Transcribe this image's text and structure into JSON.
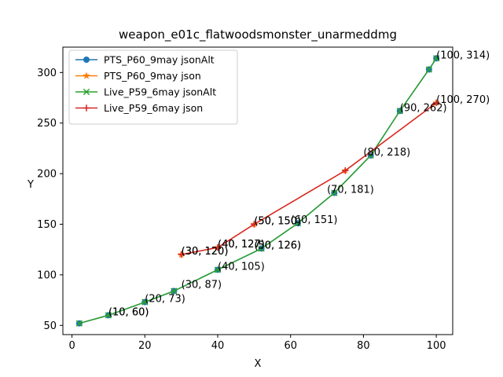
{
  "chart_data": {
    "type": "line",
    "title": "weapon_e01c_flatwoodsmonster_unarmeddmg",
    "xlabel": "X",
    "ylabel": "Y",
    "xlim": [
      -2.5,
      104.5
    ],
    "ylim": [
      40.9,
      325.1
    ],
    "xticks": [
      0,
      20,
      40,
      60,
      80,
      100
    ],
    "yticks": [
      50,
      100,
      150,
      200,
      250,
      300
    ],
    "grid": false,
    "legend_position": "upper left",
    "series": [
      {
        "name": "PTS_P60_9may jsonAlt",
        "color": "#1f77b4",
        "marker": "circle",
        "x": [
          2,
          10,
          20,
          28,
          40,
          52,
          62,
          72,
          82,
          90,
          98,
          100
        ],
        "y": [
          52,
          60,
          73,
          84,
          105,
          126,
          151,
          181,
          218,
          262,
          303,
          314
        ]
      },
      {
        "name": "PTS_P60_9may json",
        "color": "#ff7f0e",
        "marker": "star",
        "x": [
          30,
          40,
          50,
          75,
          100
        ],
        "y": [
          120,
          127,
          150,
          203,
          270
        ]
      },
      {
        "name": "Live_P59_6may jsonAlt",
        "color": "#2ca02c",
        "marker": "x",
        "x": [
          2,
          10,
          20,
          28,
          40,
          52,
          62,
          72,
          82,
          90,
          98,
          100
        ],
        "y": [
          52,
          60,
          73,
          84,
          105,
          126,
          151,
          181,
          218,
          262,
          303,
          314
        ]
      },
      {
        "name": "Live_P59_6may json",
        "color": "#d62728",
        "marker": "plus",
        "x": [
          30,
          40,
          50,
          75,
          100
        ],
        "y": [
          120,
          127,
          150,
          203,
          270
        ]
      }
    ],
    "annotations": [
      {
        "text": "(10, 60)",
        "x": 10,
        "y": 60
      },
      {
        "text": "(10, 60)",
        "x": 10,
        "y": 60
      },
      {
        "text": "(20, 73)",
        "x": 20,
        "y": 73
      },
      {
        "text": "(30, 87)",
        "x": 30,
        "y": 87
      },
      {
        "text": "(30, 120)",
        "x": 30,
        "y": 120
      },
      {
        "text": "(30, 120)",
        "x": 30,
        "y": 120
      },
      {
        "text": "(40, 105)",
        "x": 40,
        "y": 105
      },
      {
        "text": "(40, 127)",
        "x": 40,
        "y": 127
      },
      {
        "text": "(40, 127)",
        "x": 40,
        "y": 127
      },
      {
        "text": "(50, 126)",
        "x": 50,
        "y": 126
      },
      {
        "text": "(50, 126)",
        "x": 50,
        "y": 126
      },
      {
        "text": "(50, 150)",
        "x": 50,
        "y": 150
      },
      {
        "text": "(50, 150)",
        "x": 50,
        "y": 150
      },
      {
        "text": "(60, 151)",
        "x": 60,
        "y": 151
      },
      {
        "text": "(70, 181)",
        "x": 70,
        "y": 181
      },
      {
        "text": "(80, 218)",
        "x": 80,
        "y": 218
      },
      {
        "text": "(90, 262)",
        "x": 90,
        "y": 262
      },
      {
        "text": "(100, 314)",
        "x": 100,
        "y": 314
      },
      {
        "text": "(100, 270)",
        "x": 100,
        "y": 270
      }
    ]
  }
}
